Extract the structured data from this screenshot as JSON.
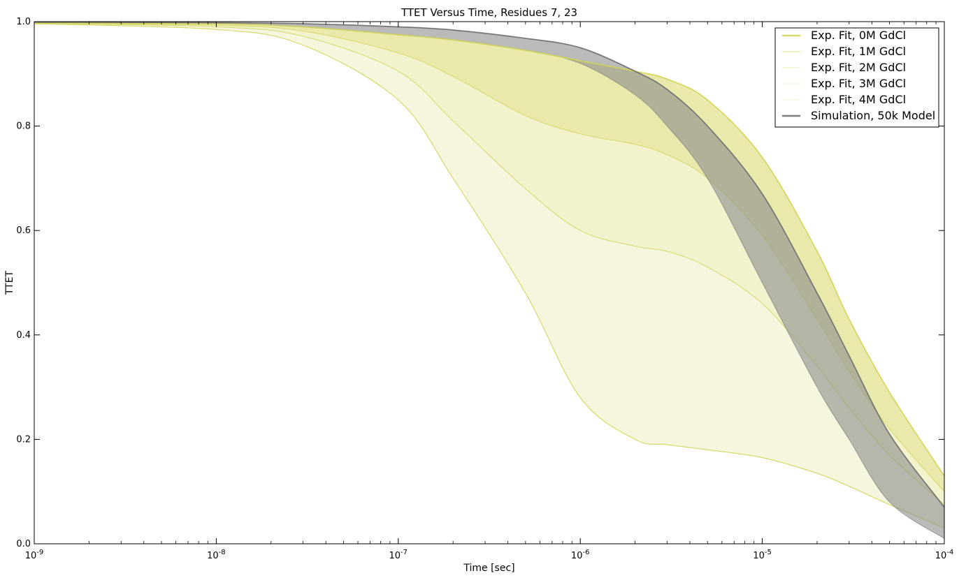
{
  "chart_data": {
    "type": "area",
    "title": "TTET Versus Time, Residues 7, 23",
    "xlabel": "Time [sec]",
    "ylabel": "TTET",
    "xscale": "log",
    "xlim": [
      1e-09,
      0.0001
    ],
    "ylim": [
      0.0,
      1.0
    ],
    "x_ticks": [
      {
        "value": 1e-09,
        "base": "10",
        "exp": "-9"
      },
      {
        "value": 1e-08,
        "base": "10",
        "exp": "-8"
      },
      {
        "value": 1e-07,
        "base": "10",
        "exp": "-7"
      },
      {
        "value": 1e-06,
        "base": "10",
        "exp": "-6"
      },
      {
        "value": 1e-05,
        "base": "10",
        "exp": "-5"
      },
      {
        "value": 0.0001,
        "base": "10",
        "exp": "-4"
      }
    ],
    "y_ticks": [
      "0.0",
      "0.2",
      "0.4",
      "0.6",
      "0.8",
      "1.0"
    ],
    "legend_position": "top-right",
    "grid": false,
    "x": [
      1e-09,
      1e-08,
      3e-08,
      1e-07,
      2e-07,
      5e-07,
      1e-06,
      2e-06,
      3e-06,
      5e-06,
      1e-05,
      2e-05,
      3e-05,
      5e-05,
      0.0001
    ],
    "series": [
      {
        "name": "Exp. Fit, 0M GdCl",
        "color": "#d4d45a",
        "fill_opacity": 0.5,
        "line_width": 2.5,
        "upper": [
          0.998,
          0.996,
          0.99,
          0.975,
          0.965,
          0.945,
          0.925,
          0.905,
          0.89,
          0.85,
          0.74,
          0.56,
          0.43,
          0.29,
          0.13
        ],
        "lower": [
          0.997,
          0.993,
          0.982,
          0.94,
          0.895,
          0.82,
          0.785,
          0.765,
          0.745,
          0.7,
          0.59,
          0.43,
          0.33,
          0.22,
          0.1
        ]
      },
      {
        "name": "Exp. Fit, 1M GdCl",
        "color": "#d4d45a",
        "fill_opacity": 0.3,
        "line_width": 1,
        "upper": [
          0.997,
          0.993,
          0.982,
          0.94,
          0.895,
          0.82,
          0.785,
          0.765,
          0.745,
          0.7,
          0.59,
          0.43,
          0.33,
          0.22,
          0.1
        ],
        "lower": [
          0.997,
          0.99,
          0.972,
          0.905,
          0.81,
          0.68,
          0.6,
          0.57,
          0.56,
          0.53,
          0.46,
          0.34,
          0.26,
          0.17,
          0.075
        ]
      },
      {
        "name": "Exp. Fit, 2M GdCl",
        "color": "#d4d45a",
        "fill_opacity": 0.2,
        "line_width": 1,
        "upper": [
          0.997,
          0.99,
          0.972,
          0.905,
          0.81,
          0.68,
          0.6,
          0.57,
          0.56,
          0.53,
          0.46,
          0.34,
          0.26,
          0.17,
          0.075
        ],
        "lower": [
          0.996,
          0.985,
          0.955,
          0.85,
          0.7,
          0.48,
          0.28,
          0.2,
          0.19,
          0.18,
          0.165,
          0.135,
          0.11,
          0.075,
          0.03
        ]
      },
      {
        "name": "Exp. Fit, 3M GdCl",
        "color": "#d4d45a",
        "fill_opacity": 0.08,
        "line_width": 1,
        "upper": [
          0.996,
          0.985,
          0.955,
          0.85,
          0.7,
          0.48,
          0.28,
          0.2,
          0.19,
          0.18,
          0.165,
          0.135,
          0.11,
          0.075,
          0.03
        ],
        "lower": [
          0.996,
          0.985,
          0.955,
          0.85,
          0.7,
          0.48,
          0.28,
          0.2,
          0.19,
          0.18,
          0.165,
          0.135,
          0.11,
          0.075,
          0.03
        ]
      },
      {
        "name": "Exp. Fit, 4M GdCl",
        "color": "#d4d45a",
        "fill_opacity": 0.04,
        "line_width": 1,
        "upper": [
          0.996,
          0.985,
          0.955,
          0.85,
          0.7,
          0.48,
          0.28,
          0.2,
          0.19,
          0.18,
          0.165,
          0.135,
          0.11,
          0.075,
          0.03
        ],
        "lower": [
          0.996,
          0.985,
          0.955,
          0.85,
          0.7,
          0.48,
          0.28,
          0.2,
          0.19,
          0.18,
          0.165,
          0.135,
          0.11,
          0.075,
          0.03
        ]
      },
      {
        "name": "Simulation, 50k Model",
        "color": "#707070",
        "fill_color": "#8c8c8c",
        "fill_opacity": 0.6,
        "line_width": 2.5,
        "upper": [
          0.999,
          0.998,
          0.996,
          0.99,
          0.984,
          0.968,
          0.95,
          0.905,
          0.87,
          0.8,
          0.67,
          0.48,
          0.36,
          0.21,
          0.07
        ],
        "lower": [
          0.998,
          0.996,
          0.99,
          0.975,
          0.965,
          0.945,
          0.92,
          0.86,
          0.8,
          0.7,
          0.5,
          0.3,
          0.2,
          0.08,
          0.01
        ]
      }
    ]
  }
}
